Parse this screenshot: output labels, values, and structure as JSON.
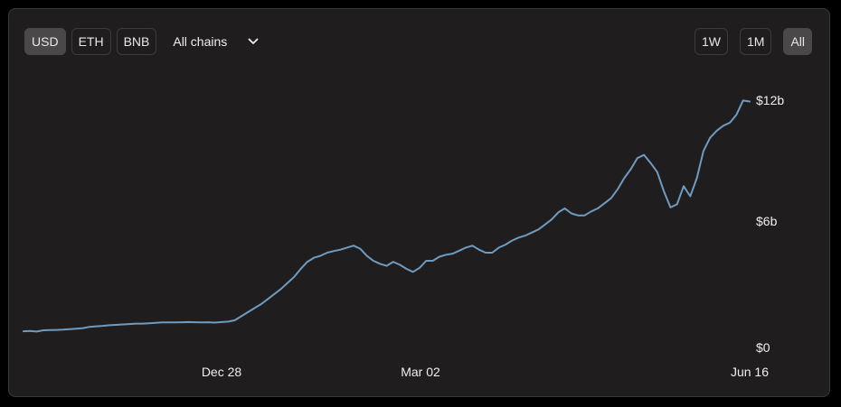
{
  "toolbar": {
    "denominations": [
      {
        "label": "USD",
        "active": true
      },
      {
        "label": "ETH",
        "active": false
      },
      {
        "label": "BNB",
        "active": false
      }
    ],
    "chain_select": {
      "label": "All chains",
      "icon": "chevron-down-icon"
    },
    "ranges": [
      {
        "label": "1W",
        "active": false
      },
      {
        "label": "1M",
        "active": false
      },
      {
        "label": "All",
        "active": true
      }
    ]
  },
  "colors": {
    "background": "#000000",
    "card": "#201d1e",
    "line": "#6f9bc0",
    "text": "#f0eeee"
  },
  "chart_data": {
    "type": "line",
    "title": "",
    "xlabel": "",
    "ylabel": "",
    "x_tick_labels": [
      "Dec 28",
      "Mar 02",
      "Jun 16"
    ],
    "y_tick_labels": [
      "$12b",
      "$6b",
      "$0"
    ],
    "ylim": [
      0,
      12000000000
    ],
    "grid": false,
    "series": [
      {
        "values": [
          0.8,
          0.82,
          0.79,
          0.85,
          0.86,
          0.87,
          0.88,
          0.91,
          0.93,
          0.96,
          1.02,
          1.05,
          1.07,
          1.1,
          1.12,
          1.14,
          1.16,
          1.18,
          1.18,
          1.2,
          1.22,
          1.24,
          1.24,
          1.24,
          1.25,
          1.26,
          1.25,
          1.24,
          1.25,
          1.23,
          1.26,
          1.28,
          1.35,
          1.55,
          1.75,
          1.95,
          2.15,
          2.4,
          2.65,
          2.9,
          3.2,
          3.5,
          3.9,
          4.25,
          4.45,
          4.55,
          4.7,
          4.78,
          4.85,
          4.95,
          5.05,
          4.9,
          4.55,
          4.3,
          4.15,
          4.05,
          4.25,
          4.1,
          3.9,
          3.75,
          3.95,
          4.3,
          4.3,
          4.5,
          4.6,
          4.65,
          4.8,
          4.95,
          5.05,
          4.85,
          4.7,
          4.7,
          4.95,
          5.1,
          5.3,
          5.45,
          5.55,
          5.7,
          5.85,
          6.1,
          6.35,
          6.7,
          6.9,
          6.65,
          6.55,
          6.55,
          6.75,
          6.9,
          7.15,
          7.4,
          7.85,
          8.4,
          8.85,
          9.4,
          9.55,
          9.15,
          8.7,
          7.75,
          6.95,
          7.1,
          8.0,
          7.5,
          8.4,
          9.75,
          10.4,
          10.75,
          11.0,
          11.15,
          11.55,
          12.25,
          12.2
        ],
        "unit": "billion USD"
      }
    ]
  }
}
